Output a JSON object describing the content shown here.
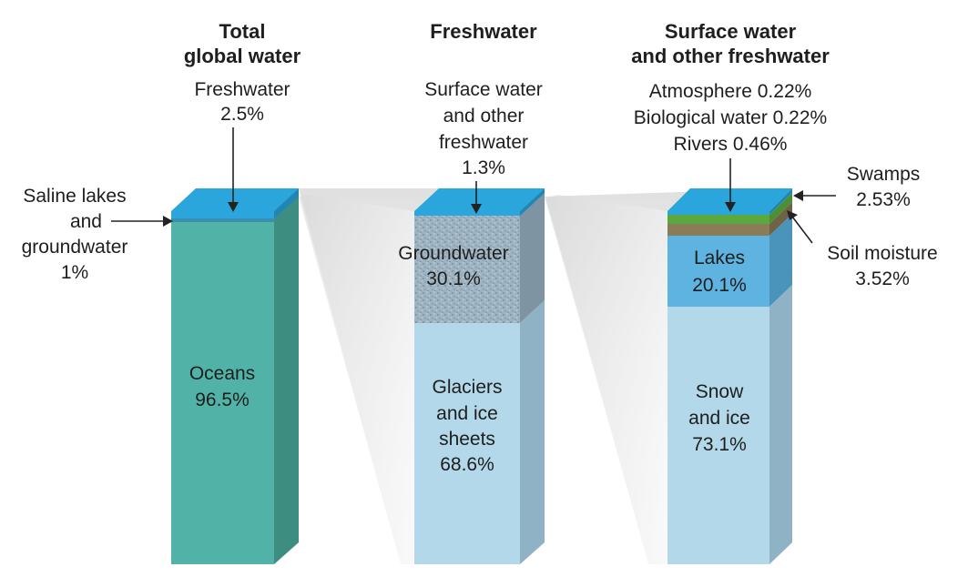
{
  "colors": {
    "ocean_front": "#51b3a7",
    "ocean_side": "#3d8d80",
    "top_blue": "#2aa6dd",
    "ice_front": "#b2d8ea",
    "ice_side": "#8fb2c4",
    "groundwater": "#9eb4c2",
    "lake_front": "#5eb3e0",
    "lake_side": "#4a94bc",
    "swamp": "#5ba83f",
    "soil": "#8a7c56",
    "funnel": "#e3e3e3"
  },
  "columns": [
    {
      "title": [
        "Total",
        "global water"
      ],
      "segments": [
        {
          "name": "Freshwater",
          "percent": 2.5
        },
        {
          "name": "Saline lakes and groundwater",
          "percent": 1
        },
        {
          "name": "Oceans",
          "percent": 96.5
        }
      ]
    },
    {
      "title": [
        "Freshwater"
      ],
      "segments": [
        {
          "name": "Surface water and other freshwater",
          "percent": 1.3
        },
        {
          "name": "Groundwater",
          "percent": 30.1
        },
        {
          "name": "Glaciers and ice sheets",
          "percent": 68.6
        }
      ]
    },
    {
      "title": [
        "Surface water",
        "and other freshwater"
      ],
      "segments": [
        {
          "name": "Atmosphere",
          "percent": 0.22
        },
        {
          "name": "Biological water",
          "percent": 0.22
        },
        {
          "name": "Rivers",
          "percent": 0.46
        },
        {
          "name": "Swamps",
          "percent": 2.53
        },
        {
          "name": "Soil moisture",
          "percent": 3.52
        },
        {
          "name": "Lakes",
          "percent": 20.1
        },
        {
          "name": "Snow and ice",
          "percent": 73.1
        }
      ]
    }
  ],
  "chart_data": {
    "type": "bar",
    "subtype": "stacked-100-percent",
    "categories": [
      "Total global water",
      "Freshwater",
      "Surface water and other freshwater"
    ],
    "series": [
      {
        "category": "Total global water",
        "segments": [
          {
            "name": "Freshwater",
            "value": 2.5
          },
          {
            "name": "Saline lakes and groundwater",
            "value": 1
          },
          {
            "name": "Oceans",
            "value": 96.5
          }
        ]
      },
      {
        "category": "Freshwater",
        "segments": [
          {
            "name": "Surface water and other freshwater",
            "value": 1.3
          },
          {
            "name": "Groundwater",
            "value": 30.1
          },
          {
            "name": "Glaciers and ice sheets",
            "value": 68.6
          }
        ]
      },
      {
        "category": "Surface water and other freshwater",
        "segments": [
          {
            "name": "Atmosphere",
            "value": 0.22
          },
          {
            "name": "Biological water",
            "value": 0.22
          },
          {
            "name": "Rivers",
            "value": 0.46
          },
          {
            "name": "Swamps",
            "value": 2.53
          },
          {
            "name": "Soil moisture",
            "value": 3.52
          },
          {
            "name": "Lakes",
            "value": 20.1
          },
          {
            "name": "Snow and ice",
            "value": 73.1
          }
        ]
      }
    ],
    "unit": "%"
  },
  "labels": {
    "c1_fresh": [
      "Freshwater",
      "2.5%"
    ],
    "c1_saline": [
      "Saline lakes",
      "and",
      "groundwater",
      "1%"
    ],
    "c1_ocean": [
      "Oceans",
      "96.5%"
    ],
    "c2_surface": [
      "Surface water",
      "and other",
      "freshwater",
      "1.3%"
    ],
    "c2_ground": [
      "Groundwater",
      "30.1%"
    ],
    "c2_glacier": [
      "Glaciers",
      "and ice",
      "sheets",
      "68.6%"
    ],
    "c3_top": [
      "Atmosphere 0.22%",
      "Biological water 0.22%",
      "Rivers 0.46%"
    ],
    "c3_swamps": [
      "Swamps",
      "2.53%"
    ],
    "c3_soil": [
      "Soil moisture",
      "3.52%"
    ],
    "c3_lakes": [
      "Lakes",
      "20.1%"
    ],
    "c3_snow": [
      "Snow",
      "and ice",
      "73.1%"
    ]
  }
}
